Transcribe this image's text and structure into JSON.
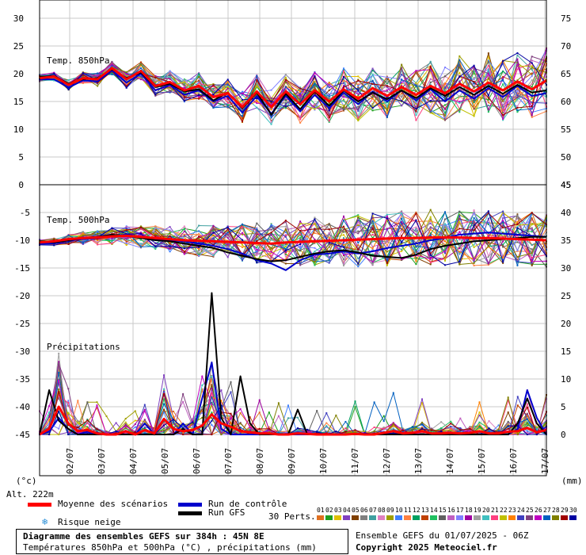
{
  "chart_data": {
    "type": "line",
    "x_ticks": [
      "02/07",
      "03/07",
      "04/07",
      "05/07",
      "06/07",
      "07/07",
      "08/07",
      "09/07",
      "10/07",
      "11/07",
      "12/07",
      "13/07",
      "14/07",
      "15/07",
      "16/07",
      "17/07"
    ],
    "panels": [
      {
        "label": "Temp. 850hPa",
        "left_ticks": [
          "30",
          "25",
          "20",
          "15",
          "10",
          "5",
          "0"
        ],
        "right_ticks": [
          "75",
          "70",
          "65",
          "60",
          "55",
          "50",
          "45"
        ],
        "left_range": [
          0,
          30
        ],
        "series": [
          {
            "name": "Moyenne des scénarios",
            "color": "#ff0000",
            "values": [
              19.2,
              19.5,
              18.0,
              19.2,
              19.0,
              21.0,
              19.0,
              20.5,
              17.8,
              18.5,
              17.0,
              17.8,
              15.8,
              16.5,
              14.0,
              16.8,
              14.0,
              16.8,
              14.5,
              17.0,
              15.0,
              17.2,
              15.5,
              17.4,
              16.0,
              17.6,
              16.2,
              17.8,
              16.5,
              18.2,
              16.8,
              18.4,
              17.0,
              18.6,
              17.2,
              18.8
            ]
          },
          {
            "name": "Run de contrôle",
            "color": "#0000cc",
            "values": [
              19.0,
              19.0,
              17.5,
              18.8,
              18.6,
              20.6,
              18.4,
              20.0,
              17.0,
              18.0,
              16.2,
              17.0,
              15.0,
              16.0,
              13.0,
              16.0,
              12.8,
              16.0,
              13.2,
              16.2,
              13.8,
              16.6,
              14.5,
              16.8,
              15.0,
              17.0,
              15.2,
              17.2,
              15.0,
              17.0,
              15.5,
              17.4,
              15.8,
              17.8,
              16.0,
              16.5
            ]
          },
          {
            "name": "Run GFS",
            "color": "#000000",
            "values": [
              19.4,
              19.6,
              18.2,
              19.0,
              19.2,
              20.8,
              19.2,
              20.2,
              17.6,
              18.2,
              16.8,
              17.2,
              15.2,
              16.6,
              13.8,
              16.6,
              12.6,
              16.4,
              13.6,
              16.8,
              14.2,
              17.0,
              15.0,
              16.6,
              15.4,
              17.0,
              15.6,
              17.4,
              16.0,
              17.6,
              16.2,
              17.8,
              16.4,
              18.0,
              16.6,
              17.0
            ]
          }
        ]
      },
      {
        "label": "Temp. 500hPa",
        "left_ticks": [
          "-5",
          "-10",
          "-15",
          "-20",
          "-25",
          "-30",
          "-35",
          "-40",
          "-45"
        ],
        "right_ticks": [
          "45",
          "40",
          "35",
          "30",
          "25",
          "20",
          "15",
          "10",
          "5",
          "0"
        ],
        "left_range": [
          -45,
          0
        ],
        "series": [
          {
            "name": "Moyenne des scénarios",
            "color": "#ff0000",
            "values": [
              -10.4,
              -10.2,
              -9.8,
              -9.6,
              -9.5,
              -9.3,
              -9.2,
              -9.4,
              -9.6,
              -9.8,
              -10.0,
              -10.1,
              -10.2,
              -10.3,
              -10.4,
              -10.5,
              -10.6,
              -10.4,
              -10.3,
              -10.2,
              -10.1,
              -10.0,
              -9.9,
              -9.8,
              -9.7,
              -9.6,
              -9.6,
              -9.5,
              -9.5,
              -9.5,
              -9.6,
              -9.6,
              -9.7,
              -9.8,
              -9.9,
              -10.0
            ]
          },
          {
            "name": "Run de contrôle",
            "color": "#0000cc",
            "values": [
              -10.6,
              -10.6,
              -10.0,
              -9.8,
              -9.6,
              -9.2,
              -9.0,
              -9.4,
              -9.8,
              -10.0,
              -10.2,
              -10.6,
              -11.0,
              -11.6,
              -12.4,
              -13.6,
              -14.2,
              -15.4,
              -13.6,
              -12.6,
              -12.4,
              -12.0,
              -12.4,
              -12.0,
              -11.4,
              -11.0,
              -10.6,
              -10.0,
              -9.6,
              -9.0,
              -8.8,
              -8.6,
              -8.8,
              -9.0,
              -9.2,
              -9.4
            ]
          },
          {
            "name": "Run GFS",
            "color": "#000000",
            "values": [
              -10.2,
              -10.4,
              -10.0,
              -9.6,
              -9.4,
              -9.0,
              -9.2,
              -9.6,
              -10.0,
              -10.2,
              -10.6,
              -11.0,
              -11.4,
              -12.2,
              -12.8,
              -13.4,
              -13.8,
              -13.6,
              -13.0,
              -12.4,
              -12.0,
              -11.8,
              -12.2,
              -12.8,
              -13.0,
              -13.2,
              -12.6,
              -11.6,
              -11.0,
              -10.6,
              -10.2,
              -10.0,
              -9.8,
              -9.6,
              -9.4,
              -9.4
            ]
          }
        ]
      },
      {
        "label": "Précipitations",
        "left_ticks": [
          "-20",
          "-25",
          "-30",
          "-35",
          "-40",
          "-45"
        ],
        "right_ticks": [
          "25",
          "20",
          "15",
          "10",
          "5",
          "0"
        ],
        "right_range": [
          0,
          45
        ],
        "series": [
          {
            "name": "Moyenne des scénarios",
            "color": "#ff0000",
            "values": [
              0,
              1.0,
              5.0,
              2.0,
              0.6,
              0.8,
              0.2,
              0,
              0,
              0.6,
              0,
              0.8,
              0.2,
              2.8,
              1.0,
              0.6,
              0.8,
              1.6,
              3.6,
              2.0,
              1.4,
              0.6,
              0.4,
              0.2,
              0.2,
              0,
              0,
              0.2,
              0.1,
              0,
              0,
              0,
              0,
              0.1,
              0,
              0,
              0.3,
              0.6,
              0.2,
              0.3,
              0.6,
              0.2,
              0.2,
              0.3,
              0.2,
              0.3,
              0.6,
              0.2,
              0.2,
              0.5,
              0.6,
              1.2,
              0.4,
              0.8
            ]
          },
          {
            "name": "Run de contrôle",
            "color": "#0000cc",
            "values": [
              0,
              0.5,
              3.0,
              1.0,
              0,
              0.5,
              0,
              0,
              0,
              0,
              0,
              2.0,
              0,
              0,
              0,
              2.0,
              0,
              6.5,
              13.0,
              1.0,
              0,
              0,
              0,
              0,
              0,
              0,
              0,
              0,
              0,
              0,
              0,
              0,
              0,
              0,
              0,
              0,
              0,
              0,
              0,
              0,
              0,
              0,
              0,
              0,
              0,
              0,
              0,
              0,
              0,
              0,
              1.0,
              8.0,
              3.0,
              0
            ]
          },
          {
            "name": "Run GFS",
            "color": "#000000",
            "values": [
              0,
              8.0,
              2.5,
              1.0,
              0,
              0,
              0,
              0,
              0,
              0,
              0,
              0,
              0,
              0,
              0,
              1.0,
              0,
              0,
              25.5,
              3.0,
              0,
              10.5,
              2.0,
              0,
              0,
              0,
              0,
              4.5,
              0,
              0,
              0,
              0,
              0,
              0,
              0,
              0,
              0,
              0,
              0,
              0,
              0,
              0,
              0,
              0,
              0,
              0,
              0,
              0,
              0,
              0,
              2.0,
              6.5,
              2.0,
              0
            ]
          }
        ]
      }
    ],
    "units_left": "(°c)",
    "units_right": "(mm)",
    "altitude": "Alt. 222m"
  },
  "legend": {
    "mean": "Moyenne des scénarios",
    "control": "Run de contrôle",
    "gfs": "Run GFS",
    "snow": "Risque neige",
    "perts_label": "30 Perts.",
    "pert_numbers": [
      "01",
      "02",
      "03",
      "04",
      "05",
      "06",
      "07",
      "08",
      "09",
      "10",
      "11",
      "12",
      "13",
      "14",
      "15",
      "16",
      "17",
      "18",
      "19",
      "20",
      "21",
      "22",
      "23",
      "24",
      "25",
      "26",
      "27",
      "28",
      "29",
      "30"
    ],
    "pert_colors": [
      "#e07020",
      "#20a020",
      "#e0c000",
      "#8040c0",
      "#804000",
      "#808080",
      "#40a0a0",
      "#e080c0",
      "#a0a000",
      "#4080ff",
      "#ff8040",
      "#00a060",
      "#c04000",
      "#20c060",
      "#606060",
      "#c060c0",
      "#8080ff",
      "#a000a0",
      "#a0a0a0",
      "#40c0c0",
      "#ff4080",
      "#c0c000",
      "#ff8000",
      "#4040c0",
      "#804080",
      "#c000c0",
      "#0060c0",
      "#808000",
      "#a00000",
      "#0000a0"
    ]
  },
  "footer": {
    "title": "Diagramme des ensembles GEFS sur 384h : 45N 8E",
    "subtitle": "Températures 850hPa et 500hPa (°C) , précipitations (mm)",
    "run": "Ensemble GEFS du 01/07/2025 - 06Z",
    "copyright": "Copyright 2025 Meteociel.fr"
  }
}
